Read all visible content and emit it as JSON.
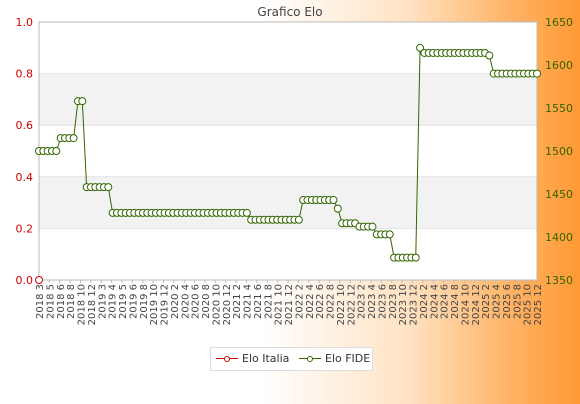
{
  "chart_data": {
    "type": "line",
    "title": "Grafico Elo",
    "left_axis": {
      "ylim": [
        0.0,
        1.0
      ],
      "ticks": [
        "0.0",
        "0.2",
        "0.4",
        "0.6",
        "0.8",
        "1.0"
      ],
      "color": "#cc0000"
    },
    "right_axis": {
      "ylim": [
        1350,
        1650
      ],
      "ticks": [
        "1350",
        "1400",
        "1450",
        "1500",
        "1550",
        "1600",
        "1650"
      ],
      "color": "#336600"
    },
    "x_tick_labels": [
      "2018 3",
      "2018 5",
      "2018 6",
      "2018 8",
      "2018 10",
      "2018 12",
      "2019 3",
      "2019 4",
      "2019 5",
      "2019 6",
      "2019 8",
      "2019 10",
      "2019 12",
      "2020 2",
      "2020 4",
      "2020 6",
      "2020 8",
      "2020 10",
      "2020 12",
      "2021 2",
      "2021 4",
      "2021 6",
      "2021 8",
      "2021 10",
      "2021 12",
      "2022 2",
      "2022 4",
      "2022 6",
      "2022 8",
      "2022 10",
      "2022 12",
      "2023 2",
      "2023 4",
      "2023 6",
      "2023 8",
      "2023 10",
      "2023 12",
      "2024 2",
      "2024 4",
      "2024 6",
      "2024 8",
      "2024 10",
      "2024 12",
      "2025 2",
      "2025 4",
      "2025 6",
      "2025 8",
      "2025 10",
      "2025 12"
    ],
    "series": [
      {
        "name": "Elo Italia",
        "axis": "left",
        "color": "#cc0000",
        "values": [
          0.0
        ]
      },
      {
        "name": "Elo FIDE",
        "axis": "right",
        "color": "#336600",
        "values": [
          1500,
          1500,
          1500,
          1500,
          1500,
          1515,
          1515,
          1515,
          1515,
          1558,
          1558,
          1458,
          1458,
          1458,
          1458,
          1458,
          1458,
          1428,
          1428,
          1428,
          1428,
          1428,
          1428,
          1428,
          1428,
          1428,
          1428,
          1428,
          1428,
          1428,
          1428,
          1428,
          1428,
          1428,
          1428,
          1428,
          1428,
          1428,
          1428,
          1428,
          1428,
          1428,
          1428,
          1428,
          1428,
          1428,
          1428,
          1428,
          1428,
          1420,
          1420,
          1420,
          1420,
          1420,
          1420,
          1420,
          1420,
          1420,
          1420,
          1420,
          1420,
          1443,
          1443,
          1443,
          1443,
          1443,
          1443,
          1443,
          1443,
          1433,
          1416,
          1416,
          1416,
          1416,
          1412,
          1412,
          1412,
          1412,
          1403,
          1403,
          1403,
          1403,
          1376,
          1376,
          1376,
          1376,
          1376,
          1376,
          1620,
          1614,
          1614,
          1614,
          1614,
          1614,
          1614,
          1614,
          1614,
          1614,
          1614,
          1614,
          1614,
          1614,
          1614,
          1614,
          1611,
          1590,
          1590,
          1590,
          1590,
          1590,
          1590,
          1590,
          1590,
          1590,
          1590,
          1590
        ]
      }
    ],
    "grid": true,
    "legend_position": "bottom"
  }
}
